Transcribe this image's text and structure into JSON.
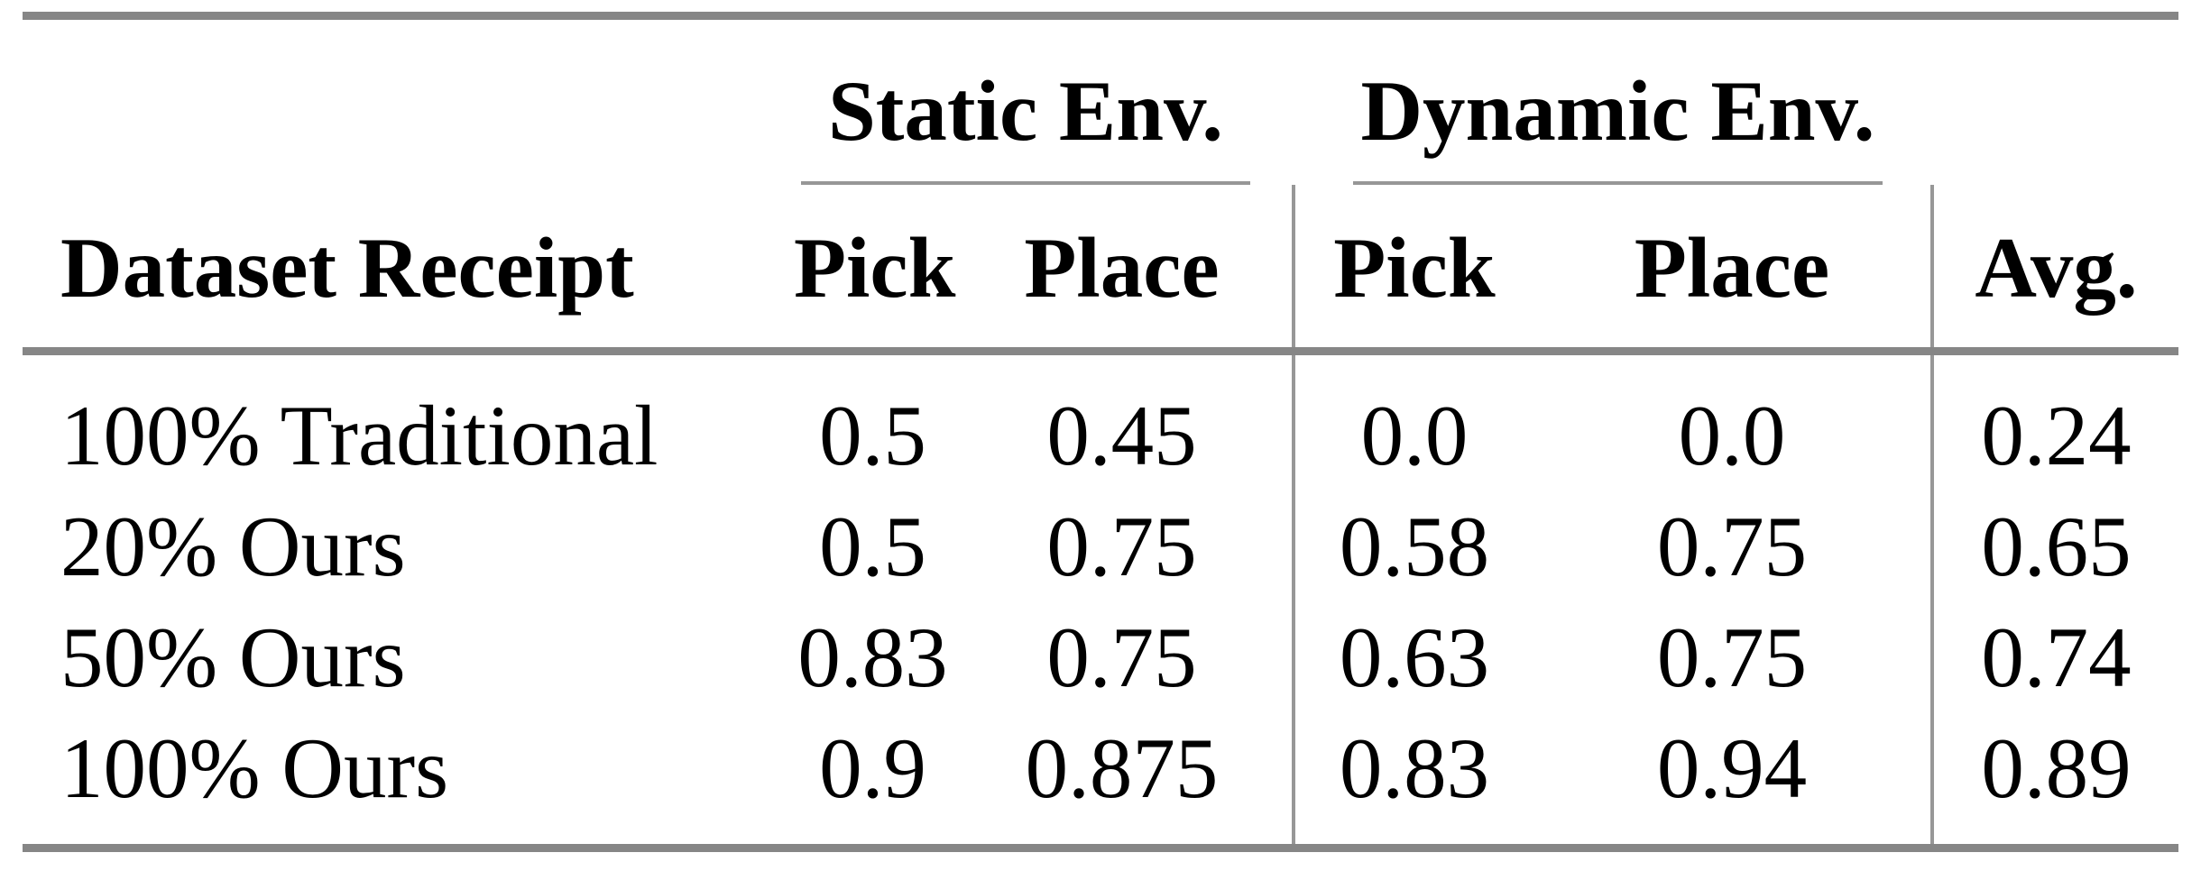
{
  "table": {
    "group_headers": {
      "static": "Static Env.",
      "dynamic": "Dynamic Env."
    },
    "column_headers": {
      "dataset": "Dataset Receipt",
      "static_pick": "Pick",
      "static_place": "Place",
      "dynamic_pick": "Pick",
      "dynamic_place": "Place",
      "avg": "Avg."
    },
    "rows": [
      {
        "label": "100% Traditional",
        "values": [
          "0.5",
          "0.45",
          "0.0",
          "0.0",
          "0.24"
        ]
      },
      {
        "label": "20% Ours",
        "values": [
          "0.5",
          "0.75",
          "0.58",
          "0.75",
          "0.65"
        ]
      },
      {
        "label": "50% Ours",
        "values": [
          "0.83",
          "0.75",
          "0.63",
          "0.75",
          "0.74"
        ]
      },
      {
        "label": "100% Ours",
        "values": [
          "0.9",
          "0.875",
          "0.83",
          "0.94",
          "0.89"
        ]
      }
    ]
  },
  "colors": {
    "rule_thick": "#868686",
    "rule_thin": "#979797",
    "text": "#000000",
    "background": "#ffffff"
  }
}
